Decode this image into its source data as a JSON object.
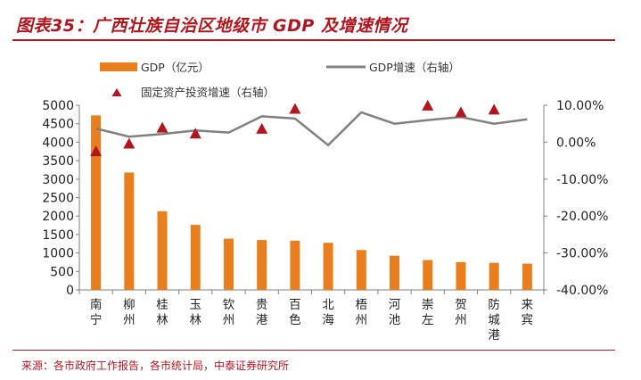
{
  "header": {
    "title": "图表35：广西壮族自治区地级市 GDP 及增速情况"
  },
  "footer": {
    "source": "来源：各市政府工作报告，各市统计局，中泰证券研究所"
  },
  "colors": {
    "bar": "#e87e1e",
    "line": "#808080",
    "marker": "#b0161e",
    "brand": "#b0161e"
  },
  "chart_data": {
    "type": "bar",
    "title": "广西壮族自治区地级市 GDP 及增速情况",
    "categories": [
      "南宁",
      "柳州",
      "桂林",
      "玉林",
      "钦州",
      "贵港",
      "百色",
      "北海",
      "梧州",
      "河池",
      "崇左",
      "贺州",
      "防城港",
      "来宾"
    ],
    "series": [
      {
        "name": "GDP（亿元）",
        "type": "bar",
        "axis": "left",
        "values": [
          4726,
          3177,
          2130,
          1761,
          1388,
          1352,
          1334,
          1276,
          1081,
          926,
          809,
          754,
          733,
          712
        ]
      },
      {
        "name": "GDP增速（右轴）",
        "type": "line",
        "axis": "right",
        "values": [
          3.7,
          1.5,
          2.2,
          3.2,
          2.6,
          7.0,
          6.4,
          -0.8,
          8.1,
          5.0,
          6.0,
          6.8,
          5.0,
          6.2
        ]
      },
      {
        "name": "固定资产投资增速（右轴）",
        "type": "scatter",
        "axis": "right",
        "values": [
          -2.6,
          -0.5,
          3.8,
          2.2,
          null,
          3.5,
          8.9,
          null,
          null,
          null,
          9.8,
          8.0,
          8.7,
          null
        ]
      }
    ],
    "ylim_left": [
      0,
      5000
    ],
    "ylim_right": [
      -40,
      10
    ],
    "yticks_left": [
      "5000",
      "4500",
      "4000",
      "3500",
      "3000",
      "2500",
      "2000",
      "1500",
      "1000",
      "500",
      "0"
    ],
    "yticks_right": [
      "10.00%",
      "0.00%",
      "-10.00%",
      "-20.00%",
      "-30.00%",
      "-40.00%"
    ],
    "legend": {
      "bar": "GDP（亿元）",
      "line": "GDP增速（右轴）",
      "marker": "固定资产投资增速（右轴）"
    }
  }
}
